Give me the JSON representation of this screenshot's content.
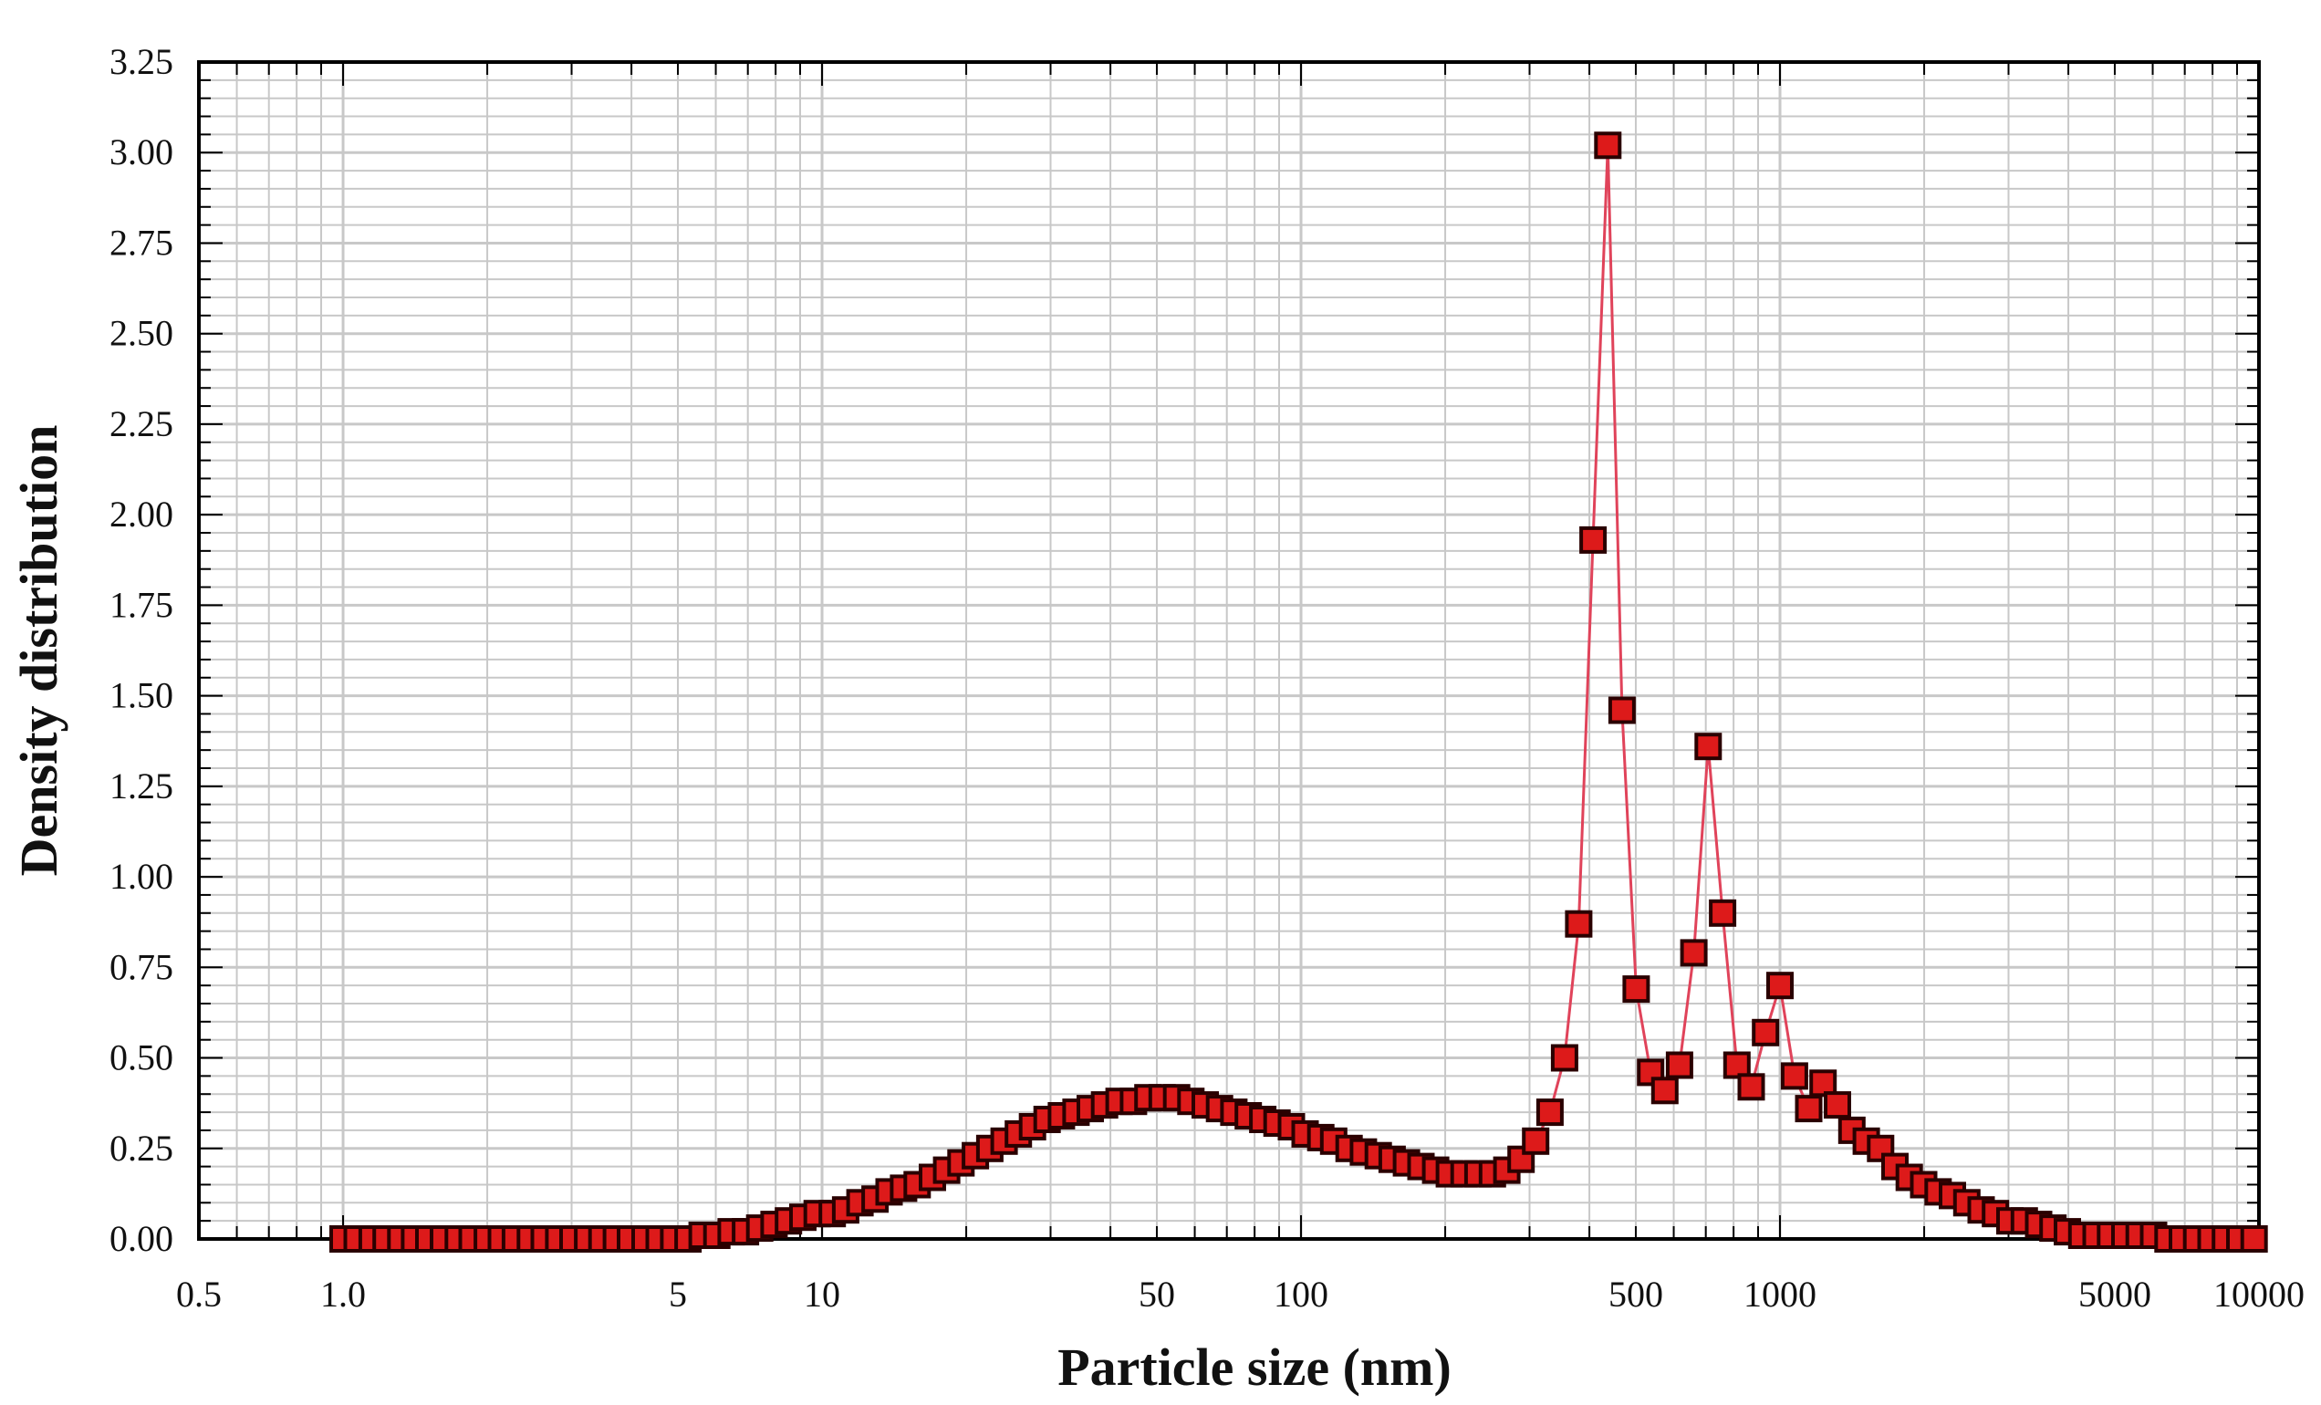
{
  "chart_data": {
    "type": "line",
    "title": "",
    "xlabel": "Particle size (nm)",
    "ylabel": "Density distribution",
    "xscale": "log",
    "xlim": [
      0.5,
      10000
    ],
    "ylim": [
      0,
      3.25
    ],
    "grid": true,
    "legend": "none",
    "colors": {
      "line": "#e0435a",
      "marker_fill": "#dd1a1a",
      "marker_edge": "#2a0000",
      "grid": "#c8c8c8",
      "axis": "#000000"
    },
    "xticks": [
      {
        "value": 0.5,
        "label": "0.5"
      },
      {
        "value": 1.0,
        "label": "1.0"
      },
      {
        "value": 5,
        "label": "5"
      },
      {
        "value": 10,
        "label": "10"
      },
      {
        "value": 50,
        "label": "50"
      },
      {
        "value": 100,
        "label": "100"
      },
      {
        "value": 500,
        "label": "500"
      },
      {
        "value": 1000,
        "label": "1000"
      },
      {
        "value": 5000,
        "label": "5000"
      },
      {
        "value": 10000,
        "label": "10000"
      }
    ],
    "yticks": [
      {
        "value": 0.0,
        "label": "0.00"
      },
      {
        "value": 0.25,
        "label": "0.25"
      },
      {
        "value": 0.5,
        "label": "0.50"
      },
      {
        "value": 0.75,
        "label": "0.75"
      },
      {
        "value": 1.0,
        "label": "1.00"
      },
      {
        "value": 1.25,
        "label": "1.25"
      },
      {
        "value": 1.5,
        "label": "1.50"
      },
      {
        "value": 1.75,
        "label": "1.75"
      },
      {
        "value": 2.0,
        "label": "2.00"
      },
      {
        "value": 2.25,
        "label": "2.25"
      },
      {
        "value": 2.5,
        "label": "2.50"
      },
      {
        "value": 2.75,
        "label": "2.75"
      },
      {
        "value": 3.0,
        "label": "3.00"
      },
      {
        "value": 3.25,
        "label": "3.25"
      }
    ],
    "series": [
      {
        "name": "Density distribution",
        "x": [
          1.0,
          1.07,
          1.15,
          1.23,
          1.32,
          1.41,
          1.51,
          1.62,
          1.74,
          1.86,
          2.0,
          2.14,
          2.29,
          2.46,
          2.63,
          2.82,
          3.02,
          3.24,
          3.47,
          3.72,
          3.98,
          4.27,
          4.57,
          4.9,
          5.25,
          5.62,
          6.03,
          6.46,
          6.92,
          7.41,
          7.94,
          8.51,
          9.12,
          9.77,
          10.5,
          11.2,
          12.0,
          12.9,
          13.8,
          14.8,
          15.8,
          17.0,
          18.2,
          19.5,
          20.9,
          22.4,
          24.0,
          25.7,
          27.5,
          29.5,
          31.6,
          33.9,
          36.3,
          38.9,
          41.7,
          44.7,
          47.9,
          51.3,
          55.0,
          58.9,
          63.1,
          67.6,
          72.4,
          77.6,
          83.2,
          89.1,
          95.5,
          102,
          110,
          117,
          126,
          135,
          145,
          155,
          166,
          178,
          191,
          204,
          219,
          234,
          251,
          269,
          288,
          309,
          331,
          355,
          380,
          407,
          437,
          468,
          501,
          537,
          575,
          617,
          661,
          708,
          759,
          813,
          871,
          933,
          1000,
          1072,
          1148,
          1230,
          1318,
          1413,
          1514,
          1622,
          1738,
          1862,
          1995,
          2138,
          2291,
          2455,
          2630,
          2818,
          3020,
          3236,
          3467,
          3715,
          3981,
          4266,
          4571,
          4898,
          5248,
          5623,
          6026,
          6457,
          6918,
          7413,
          7943,
          8511,
          9120,
          9772
        ],
        "y": [
          0.0,
          0.0,
          0.0,
          0.0,
          0.0,
          0.0,
          0.0,
          0.0,
          0.0,
          0.0,
          0.0,
          0.0,
          0.0,
          0.0,
          0.0,
          0.0,
          0.0,
          0.0,
          0.0,
          0.0,
          0.0,
          0.0,
          0.0,
          0.0,
          0.0,
          0.01,
          0.01,
          0.02,
          0.02,
          0.03,
          0.04,
          0.05,
          0.06,
          0.07,
          0.07,
          0.08,
          0.1,
          0.11,
          0.13,
          0.14,
          0.15,
          0.17,
          0.19,
          0.21,
          0.23,
          0.25,
          0.27,
          0.29,
          0.31,
          0.33,
          0.34,
          0.35,
          0.36,
          0.37,
          0.38,
          0.38,
          0.39,
          0.39,
          0.39,
          0.38,
          0.37,
          0.36,
          0.35,
          0.34,
          0.33,
          0.32,
          0.31,
          0.29,
          0.28,
          0.27,
          0.25,
          0.24,
          0.23,
          0.22,
          0.21,
          0.2,
          0.19,
          0.18,
          0.18,
          0.18,
          0.18,
          0.19,
          0.22,
          0.27,
          0.35,
          0.5,
          0.87,
          1.93,
          3.02,
          1.46,
          0.69,
          0.46,
          0.41,
          0.48,
          0.79,
          1.36,
          0.9,
          0.48,
          0.42,
          0.57,
          0.7,
          0.45,
          0.36,
          0.43,
          0.37,
          0.3,
          0.27,
          0.25,
          0.2,
          0.17,
          0.15,
          0.13,
          0.12,
          0.1,
          0.08,
          0.07,
          0.05,
          0.05,
          0.04,
          0.03,
          0.02,
          0.01,
          0.01,
          0.01,
          0.01,
          0.01,
          0.01,
          0.0,
          0.0,
          0.0,
          0.0,
          0.0,
          0.0,
          0.0
        ]
      }
    ]
  }
}
